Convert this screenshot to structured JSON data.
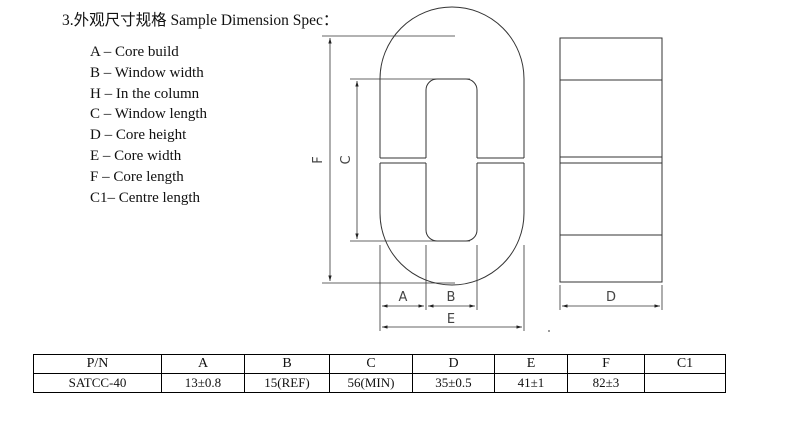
{
  "title": "3.外观尺寸规格 Sample Dimension Spec：",
  "legend": [
    "A – Core build",
    "B – Window width",
    "H – In the column",
    "C – Window length",
    "D – Core height",
    "E – Core width",
    "F – Core length",
    "C1– Centre length"
  ],
  "drawing_labels": {
    "A": "A",
    "B": "B",
    "C": "C",
    "D": "D",
    "E": "E",
    "F": "F"
  },
  "table": {
    "headers": [
      "P/N",
      "A",
      "B",
      "C",
      "D",
      "E",
      "F",
      "C1"
    ],
    "rows": [
      [
        "SATCC-40",
        "13±0.8",
        "15(REF)",
        "56(MIN)",
        "35±0.5",
        "41±1",
        "82±3",
        ""
      ]
    ]
  }
}
